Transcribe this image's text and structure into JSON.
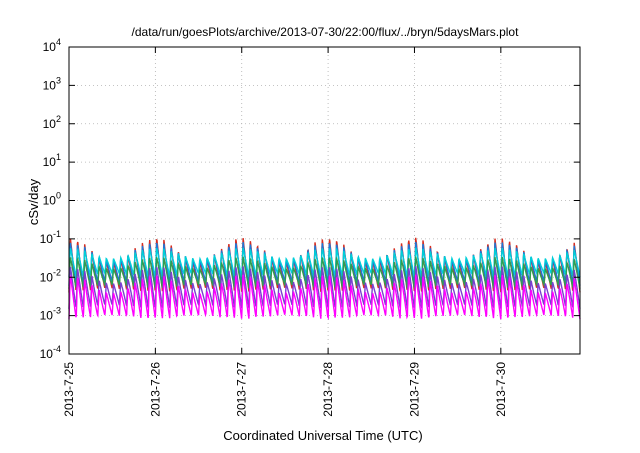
{
  "chart_data": {
    "type": "line",
    "title": "/data/run/goesPlots/archive/2013-07-30/22:00/flux/../bryn/5daysMars.plot",
    "xlabel": "Coordinated Universal Time (UTC)",
    "ylabel": "cSv/day",
    "yscale": "log",
    "ylim": [
      0.0001,
      10000
    ],
    "y_ticks": [
      {
        "base": "10",
        "exp": "-4"
      },
      {
        "base": "10",
        "exp": "-3"
      },
      {
        "base": "10",
        "exp": "-2"
      },
      {
        "base": "10",
        "exp": "-1"
      },
      {
        "base": "10",
        "exp": "0"
      },
      {
        "base": "10",
        "exp": "1"
      },
      {
        "base": "10",
        "exp": "2"
      },
      {
        "base": "10",
        "exp": "3"
      },
      {
        "base": "10",
        "exp": "4"
      }
    ],
    "xlim": [
      "2013-07-25 00:00",
      "2013-07-30 22:00"
    ],
    "x_ticks": [
      "2013-7-25",
      "2013-7-26",
      "2013-7-27",
      "2013-7-28",
      "2013-7-29",
      "2013-7-30"
    ],
    "grid": true,
    "legend": "none",
    "series": [
      {
        "color": "#d62d20",
        "peak": 0.11,
        "trough": 0.004
      },
      {
        "color": "#1f77d8",
        "peak": 0.085,
        "trough": 0.006
      },
      {
        "color": "#00cfd8",
        "peak": 0.06,
        "trough": 0.01
      },
      {
        "color": "#2e9e4f",
        "peak": 0.035,
        "trough": 0.005
      },
      {
        "color": "#7a3fd0",
        "peak": 0.02,
        "trough": 0.0015
      },
      {
        "color": "#ff00ff",
        "peak": 0.012,
        "trough": 0.0008
      }
    ],
    "cycles_per_day": 12
  }
}
